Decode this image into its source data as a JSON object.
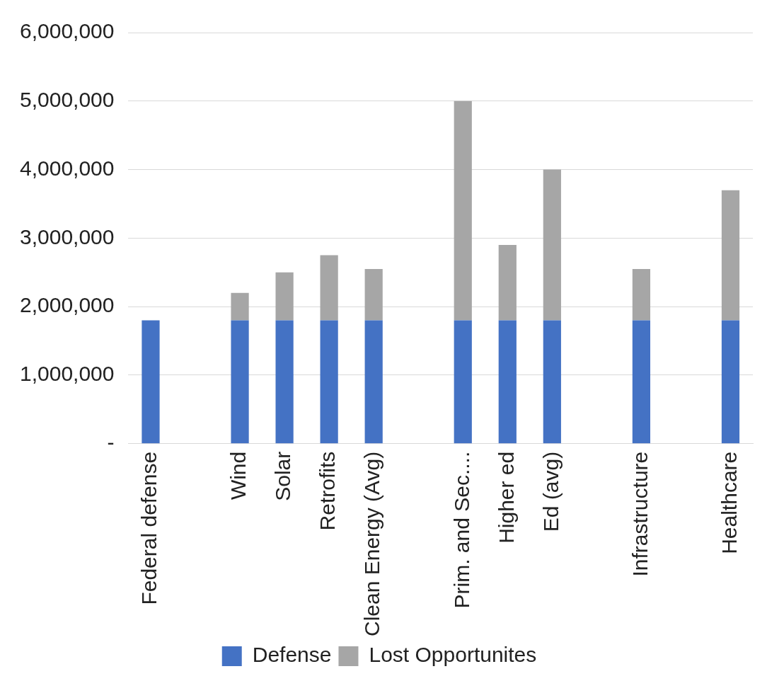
{
  "chart_data": {
    "type": "bar",
    "stacked": true,
    "categories": [
      "Federal defense",
      null,
      "Wind",
      "Solar",
      "Retrofits",
      "Clean Energy (Avg)",
      null,
      "Prim. and Sec....",
      "Higher ed",
      "Ed (avg)",
      null,
      "Infrastructure",
      null,
      "Healthcare"
    ],
    "series": [
      {
        "name": "Defense",
        "color": "#4472c4",
        "values": [
          1800000,
          null,
          1800000,
          1800000,
          1800000,
          1800000,
          null,
          1800000,
          1800000,
          1800000,
          null,
          1800000,
          null,
          1800000
        ]
      },
      {
        "name": "Lost Opportunites",
        "color": "#a6a6a6",
        "values": [
          null,
          null,
          400000,
          700000,
          950000,
          750000,
          null,
          3200000,
          1100000,
          2200000,
          null,
          750000,
          null,
          1900000
        ]
      }
    ],
    "ylim": [
      0,
      6000000
    ],
    "yticks": [
      {
        "value": 0,
        "label": "-"
      },
      {
        "value": 1000000,
        "label": "1,000,000"
      },
      {
        "value": 2000000,
        "label": "2,000,000"
      },
      {
        "value": 3000000,
        "label": "3,000,000"
      },
      {
        "value": 4000000,
        "label": "4,000,000"
      },
      {
        "value": 5000000,
        "label": "5,000,000"
      },
      {
        "value": 6000000,
        "label": "6,000,000"
      }
    ],
    "grid": "y",
    "legend": "bottom"
  }
}
